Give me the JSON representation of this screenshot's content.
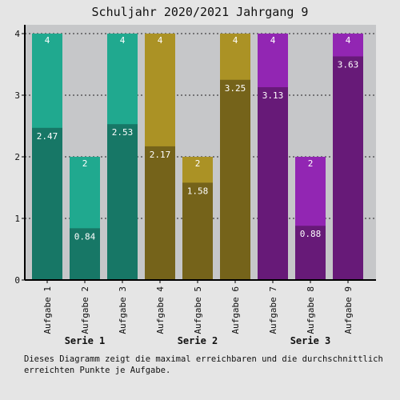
{
  "chart_data": {
    "type": "bar",
    "title": "Schuljahr 2020/2021 Jahrgang 9",
    "categories": [
      "Aufgabe 1",
      "Aufgabe 2",
      "Aufgabe 3",
      "Aufgabe 4",
      "Aufgabe 5",
      "Aufgabe 6",
      "Aufgabe 7",
      "Aufgabe 8",
      "Aufgabe 9"
    ],
    "groups": [
      {
        "name": "Serie 1",
        "categories": [
          0,
          1,
          2
        ]
      },
      {
        "name": "Serie 2",
        "categories": [
          3,
          4,
          5
        ]
      },
      {
        "name": "Serie 3",
        "categories": [
          6,
          7,
          8
        ]
      }
    ],
    "max_points": [
      4,
      2,
      4,
      4,
      2,
      4,
      4,
      2,
      4
    ],
    "avg_points": [
      2.47,
      0.84,
      2.53,
      2.17,
      1.58,
      3.25,
      3.13,
      0.88,
      3.63
    ],
    "ylim": [
      0,
      4
    ],
    "yticks": [
      0,
      1,
      2,
      3,
      4
    ],
    "grid": true,
    "colors": {
      "Serie 1": {
        "max": "#20a98f",
        "avg": "#177766"
      },
      "Serie 2": {
        "max": "#ab9225",
        "avg": "#75631a"
      },
      "Serie 3": {
        "max": "#9226b3",
        "avg": "#671a78"
      }
    },
    "caption": "Dieses Diagramm zeigt die maximal erreichbaren und die durchschnittlich erreichten Punkte je Aufgabe."
  }
}
